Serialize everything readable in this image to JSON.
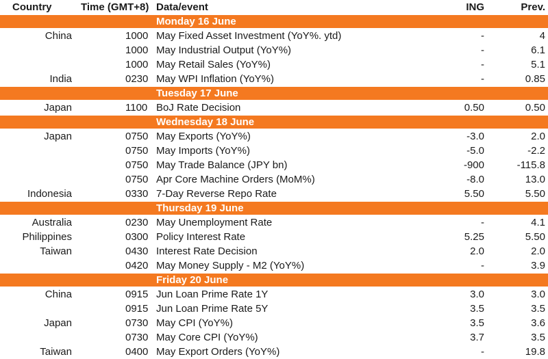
{
  "header": {
    "country": "Country",
    "time": "Time (GMT+8)",
    "event": "Data/event",
    "ing": "ING",
    "prev": "Prev."
  },
  "days": [
    {
      "label": "Monday 16 June",
      "rows": [
        {
          "country": "China",
          "time": "1000",
          "event": "May Fixed Asset Investment (YoY%. ytd)",
          "ing": "-",
          "prev": "4"
        },
        {
          "country": "",
          "time": "1000",
          "event": "May Industrial Output (YoY%)",
          "ing": "-",
          "prev": "6.1"
        },
        {
          "country": "",
          "time": "1000",
          "event": "May Retail Sales (YoY%)",
          "ing": "-",
          "prev": "5.1"
        },
        {
          "country": "India",
          "time": "0230",
          "event": "May WPI Inflation (YoY%)",
          "ing": "-",
          "prev": "0.85"
        }
      ]
    },
    {
      "label": "Tuesday 17 June",
      "rows": [
        {
          "country": "Japan",
          "time": "1100",
          "event": "BoJ Rate Decision",
          "ing": "0.50",
          "prev": "0.50"
        }
      ]
    },
    {
      "label": "Wednesday 18 June",
      "rows": [
        {
          "country": "Japan",
          "time": "0750",
          "event": "May Exports (YoY%)",
          "ing": "-3.0",
          "prev": "2.0"
        },
        {
          "country": "",
          "time": "0750",
          "event": "May Imports (YoY%)",
          "ing": "-5.0",
          "prev": "-2.2"
        },
        {
          "country": "",
          "time": "0750",
          "event": "May Trade Balance (JPY bn)",
          "ing": "-900",
          "prev": "-115.8"
        },
        {
          "country": "",
          "time": "0750",
          "event": "Apr Core Machine Orders (MoM%)",
          "ing": "-8.0",
          "prev": "13.0"
        },
        {
          "country": "Indonesia",
          "time": "0330",
          "event": "7-Day Reverse Repo Rate",
          "ing": "5.50",
          "prev": "5.50"
        }
      ]
    },
    {
      "label": "Thursday 19 June",
      "rows": [
        {
          "country": "Australia",
          "time": "0230",
          "event": "May Unemployment Rate",
          "ing": "-",
          "prev": "4.1"
        },
        {
          "country": "Philippines",
          "time": "0300",
          "event": "Policy Interest Rate",
          "ing": "5.25",
          "prev": "5.50"
        },
        {
          "country": "Taiwan",
          "time": "0430",
          "event": "Interest Rate Decision",
          "ing": "2.0",
          "prev": "2.0"
        },
        {
          "country": "",
          "time": "0420",
          "event": "May Money Supply - M2 (YoY%)",
          "ing": "-",
          "prev": "3.9"
        }
      ]
    },
    {
      "label": "Friday 20 June",
      "rows": [
        {
          "country": "China",
          "time": "0915",
          "event": "Jun Loan Prime Rate 1Y",
          "ing": "3.0",
          "prev": "3.0"
        },
        {
          "country": "",
          "time": "0915",
          "event": "Jun Loan Prime Rate 5Y",
          "ing": "3.5",
          "prev": "3.5"
        },
        {
          "country": "Japan",
          "time": "0730",
          "event": "May CPI (YoY%)",
          "ing": "3.5",
          "prev": "3.6"
        },
        {
          "country": "",
          "time": "0730",
          "event": "May Core CPI (YoY%)",
          "ing": "3.7",
          "prev": "3.5"
        },
        {
          "country": "Taiwan",
          "time": "0400",
          "event": "May Export Orders (YoY%)",
          "ing": "-",
          "prev": "19.8"
        }
      ]
    }
  ]
}
